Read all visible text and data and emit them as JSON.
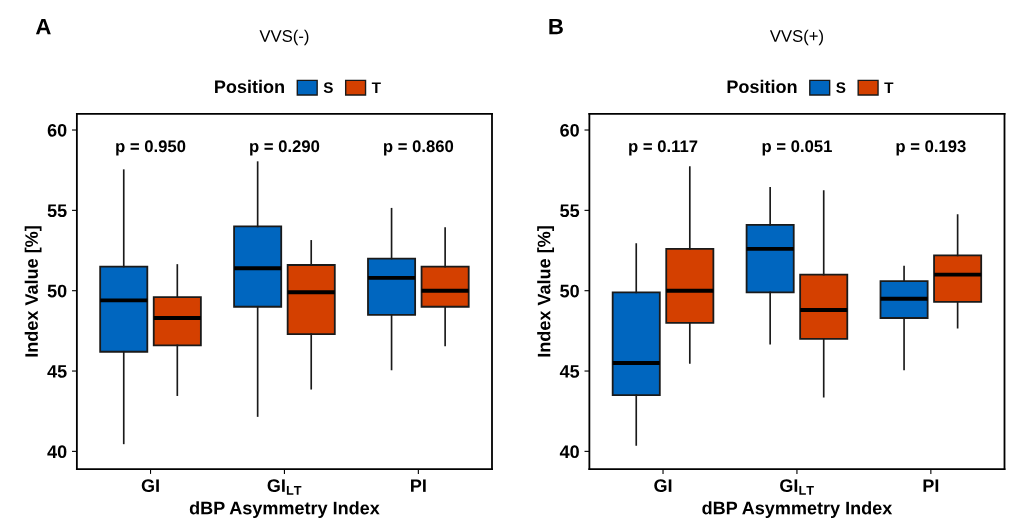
{
  "chart_data": [
    {
      "type": "box",
      "title": "VVS(-)",
      "xlabel": "dBP Asymmetry Index",
      "ylabel": "Index Value [%]",
      "legend_title": "Position",
      "legend": "top",
      "grid": false,
      "categories": [
        "GI",
        "GI$_{LT}$",
        "PI"
      ],
      "ylim": [
        38.9,
        61
      ],
      "yticks": [
        40,
        45,
        50,
        55,
        60
      ],
      "series": [
        {
          "name": "S",
          "color": "#0066bf",
          "boxes": [
            {
              "low": 40.5,
              "q1": 46.2,
              "median": 49.4,
              "q3": 51.5,
              "high": 57.5
            },
            {
              "low": 42.2,
              "q1": 49.0,
              "median": 51.4,
              "q3": 54.0,
              "high": 58.0
            },
            {
              "low": 45.1,
              "q1": 48.5,
              "median": 50.8,
              "q3": 52.0,
              "high": 55.1
            }
          ]
        },
        {
          "name": "T",
          "color": "#d44000",
          "boxes": [
            {
              "low": 43.5,
              "q1": 46.6,
              "median": 48.3,
              "q3": 49.6,
              "high": 51.6
            },
            {
              "low": 43.9,
              "q1": 47.3,
              "median": 49.9,
              "q3": 51.6,
              "high": 53.1
            },
            {
              "low": 46.6,
              "q1": 49.0,
              "median": 50.0,
              "q3": 51.5,
              "high": 53.9
            }
          ]
        }
      ],
      "annotations": [
        "A",
        "p = 0.950",
        "p = 0.290",
        "p = 0.860"
      ]
    },
    {
      "type": "box",
      "title": "VVS(+)",
      "xlabel": "dBP Asymmetry Index",
      "ylabel": "Index Value [%]",
      "legend_title": "Position",
      "legend": "top",
      "grid": false,
      "categories": [
        "GI",
        "GI$_{LT}$",
        "PI"
      ],
      "ylim": [
        38.9,
        61
      ],
      "yticks": [
        40,
        45,
        50,
        55,
        60
      ],
      "series": [
        {
          "name": "S",
          "color": "#0066bf",
          "boxes": [
            {
              "low": 40.4,
              "q1": 43.5,
              "median": 45.5,
              "q3": 49.9,
              "high": 52.9
            },
            {
              "low": 46.7,
              "q1": 49.9,
              "median": 52.6,
              "q3": 54.1,
              "high": 56.4
            },
            {
              "low": 45.1,
              "q1": 48.3,
              "median": 49.5,
              "q3": 50.6,
              "high": 51.5
            }
          ]
        },
        {
          "name": "T",
          "color": "#d44000",
          "boxes": [
            {
              "low": 45.5,
              "q1": 48.0,
              "median": 50.0,
              "q3": 52.6,
              "high": 57.7
            },
            {
              "low": 43.4,
              "q1": 47.0,
              "median": 48.8,
              "q3": 51.0,
              "high": 56.2
            },
            {
              "low": 47.7,
              "q1": 49.3,
              "median": 51.0,
              "q3": 52.2,
              "high": 54.7
            }
          ]
        }
      ],
      "annotations": [
        "B",
        "p = 0.117",
        "p = 0.051",
        "p = 0.193"
      ]
    }
  ]
}
